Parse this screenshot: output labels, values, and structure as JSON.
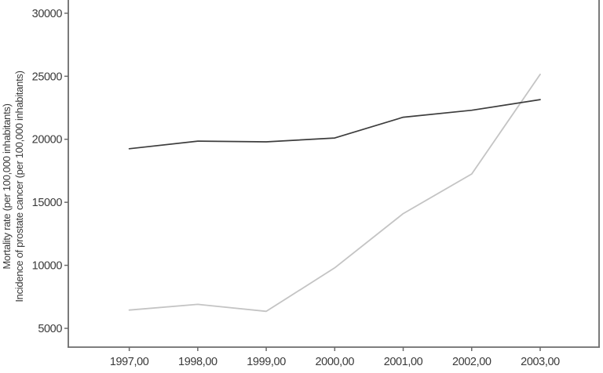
{
  "figure": {
    "background": "#ffffff",
    "axis_color": "#6b6b6b",
    "text_color": "#3a3a3a"
  },
  "chart_data": {
    "type": "line",
    "title": "",
    "xlabel": "",
    "ylabel_line1": "Mortality rate (per 100,000 inhabitants)",
    "ylabel_line2": "Incidence of prostate cancer (per 100,000 inhabitants)",
    "x": [
      1997,
      1998,
      1999,
      2000,
      2001,
      2002,
      2003
    ],
    "x_tick_labels": [
      "1997,00",
      "1998,00",
      "1999,00",
      "2000,00",
      "2001,00",
      "2002,00",
      "2003,00"
    ],
    "y_ticks": [
      5000,
      10000,
      15000,
      20000,
      25000,
      30000
    ],
    "y_tick_labels": [
      "5000",
      "10000",
      "15000",
      "20000",
      "25000",
      "30000"
    ],
    "ylim": [
      3508,
      31050
    ],
    "xlim_years": [
      1996.11,
      2003.86
    ],
    "grid": false,
    "legend": "none",
    "frame_sides": [
      "left",
      "right",
      "bottom"
    ],
    "series": [
      {
        "name": "light-gray-line",
        "color": "#c4c4c4",
        "stroke_width": 1.8,
        "values": [
          6450,
          6900,
          6350,
          9800,
          14100,
          17250,
          25150
        ]
      },
      {
        "name": "dark-line",
        "color": "#3d3d3d",
        "stroke_width": 1.7,
        "values": [
          19250,
          19850,
          19800,
          20100,
          21750,
          22300,
          23150
        ]
      }
    ]
  }
}
